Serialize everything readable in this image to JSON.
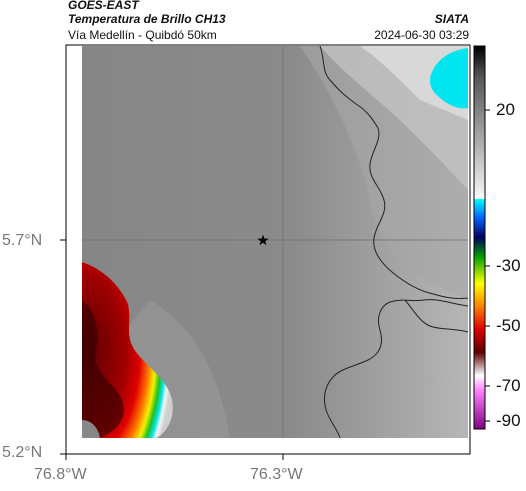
{
  "header": {
    "satellite": "GOES-EAST",
    "product": "Temperatura de Brillo CH13",
    "location": "Vía Medellín - Quibdó 50km",
    "org": "SIATA",
    "timestamp": "2024-06-30 03:29"
  },
  "axes": {
    "lat_labels": [
      "5.7°N",
      "5.2°N"
    ],
    "lon_labels": [
      "76.8°W",
      "76.3°W"
    ]
  },
  "colorbar": {
    "tick_labels": [
      "20",
      "-30",
      "-50",
      "-70",
      "-90"
    ]
  },
  "colors": {
    "background_gray": "#8a8a8a",
    "cold_cyan": "#00e5f0",
    "deep_red": "#5a0000",
    "red": "#d00000",
    "yellow": "#f2f200",
    "green": "#20c020",
    "border_line": "#222222",
    "marker": "#000000"
  },
  "marker": {
    "type": "star"
  }
}
